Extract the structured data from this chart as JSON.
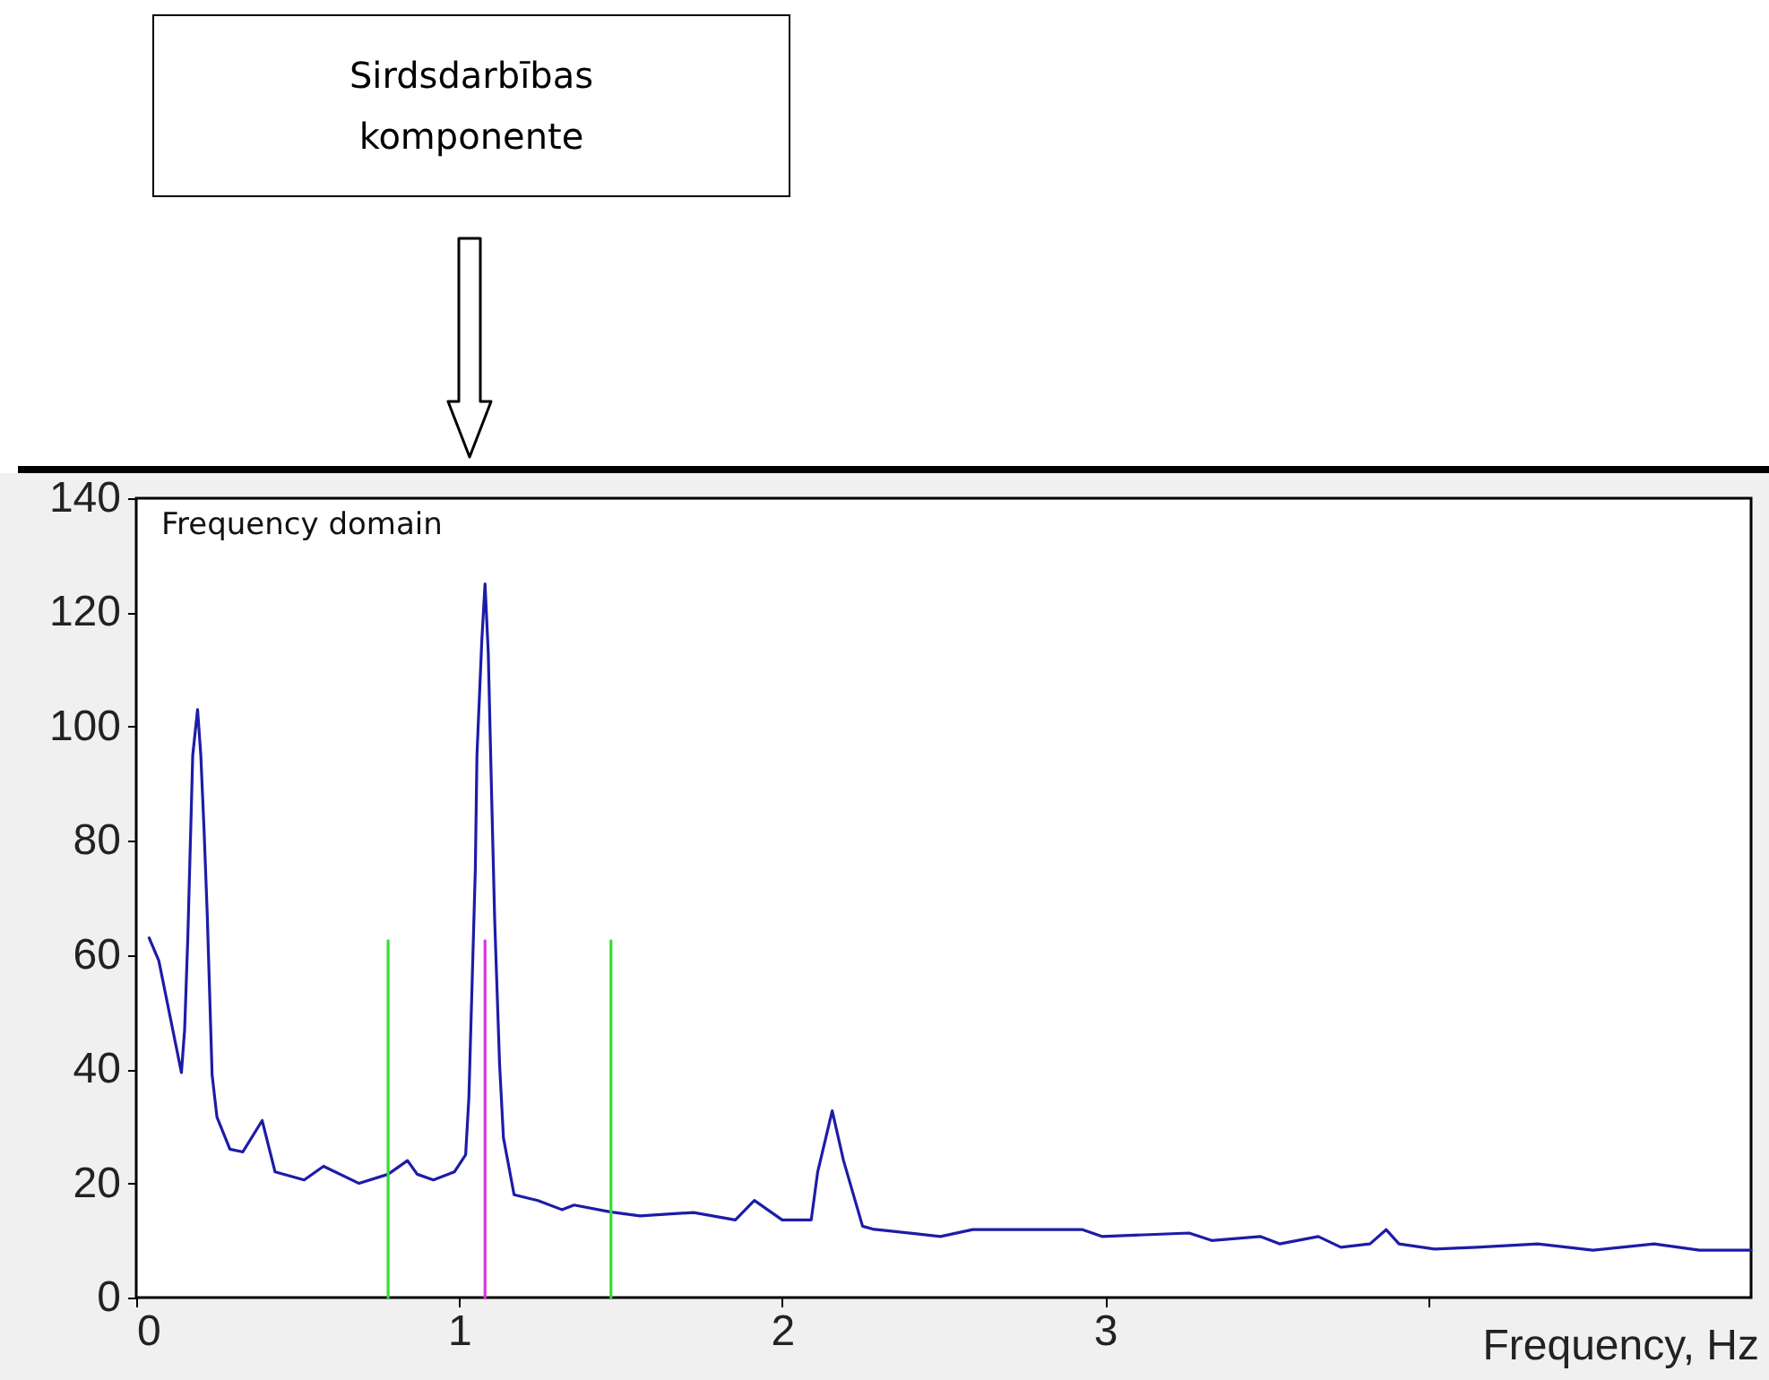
{
  "chart_data": {
    "type": "line",
    "title": "Frequency domain",
    "xlabel": "Frequency, Hz",
    "annotations": [
      "Sirdsdarbības komponente"
    ],
    "xlim": [
      0,
      5
    ],
    "xticks": [
      0,
      1,
      2,
      3,
      {
        "value": 4,
        "label": null
      }
    ],
    "ylim": [
      0,
      140
    ],
    "yticks": [
      0,
      20,
      40,
      60,
      80,
      100,
      120,
      140
    ],
    "grid": false,
    "legend": false,
    "series": [
      {
        "color": "#1c1ca8",
        "x": [
          0.04,
          0.07,
          0.14,
          0.15,
          0.16,
          0.175,
          0.19,
          0.2,
          0.21,
          0.22,
          0.235,
          0.25,
          0.29,
          0.33,
          0.39,
          0.43,
          0.52,
          0.58,
          0.69,
          0.78,
          0.84,
          0.87,
          0.92,
          0.985,
          1.02,
          1.03,
          1.04,
          1.05,
          1.055,
          1.07,
          1.08,
          1.09,
          1.1,
          1.11,
          1.125,
          1.137,
          1.17,
          1.244,
          1.318,
          1.356,
          1.467,
          1.56,
          1.726,
          1.855,
          1.914,
          2.0,
          2.09,
          2.11,
          2.155,
          2.19,
          2.249,
          2.28,
          2.49,
          2.59,
          2.93,
          2.99,
          3.26,
          3.33,
          3.48,
          3.54,
          3.66,
          3.73,
          3.82,
          3.87,
          3.91,
          4.02,
          4.15,
          4.34,
          4.51,
          4.7,
          4.84,
          5.0
        ],
        "values": [
          63,
          59,
          39.4,
          47,
          63.5,
          95,
          103,
          95,
          82,
          67,
          39,
          31.6,
          26,
          25.5,
          31,
          22,
          20.6,
          23,
          20,
          21.6,
          24,
          21.6,
          20.6,
          22,
          25,
          35,
          55,
          75,
          95,
          115,
          125,
          113,
          89,
          66,
          41,
          28,
          18,
          17,
          15.4,
          16.2,
          15,
          14.3,
          14.9,
          13.6,
          17,
          13.6,
          13.6,
          22,
          32.7,
          24,
          12.5,
          12,
          10.7,
          11.9,
          11.9,
          10.7,
          11.3,
          10,
          10.7,
          9.4,
          10.7,
          8.8,
          9.4,
          11.9,
          9.4,
          8.5,
          8.8,
          9.4,
          8.3,
          9.4,
          8.3,
          8.3
        ]
      },
      {
        "color": "#33dd33",
        "x": [
          0.78,
          0.78
        ],
        "values": [
          0,
          62.5
        ]
      },
      {
        "color": "#dd33dd",
        "x": [
          1.08,
          1.08
        ],
        "values": [
          0,
          62.5
        ]
      },
      {
        "color": "#33dd33",
        "x": [
          1.47,
          1.47
        ],
        "values": [
          0,
          62.5
        ]
      }
    ]
  }
}
